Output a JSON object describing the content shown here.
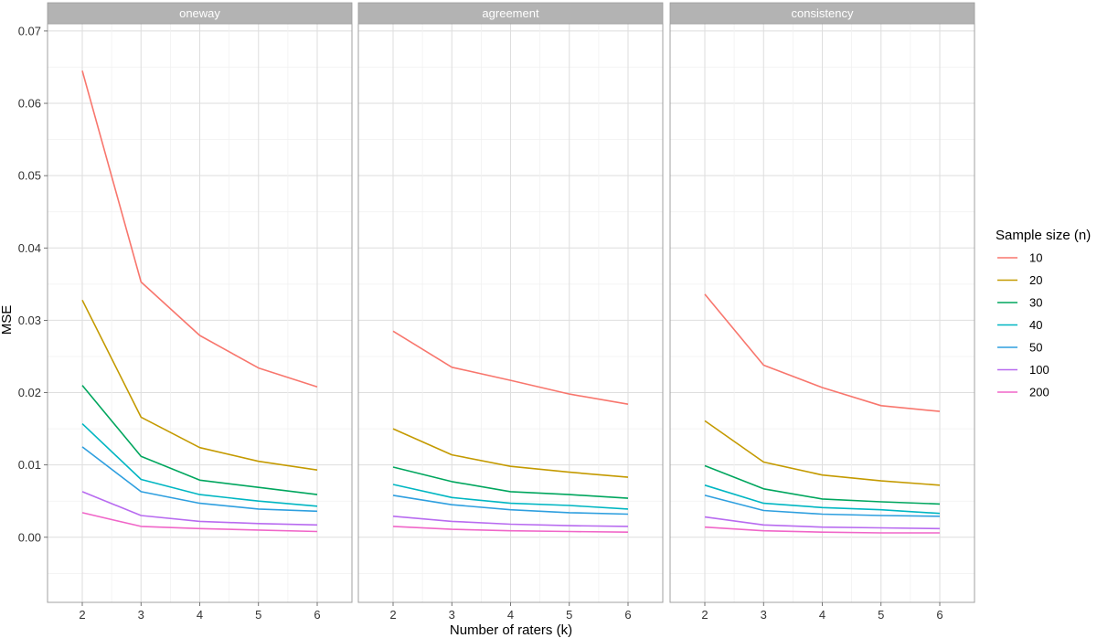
{
  "chart_data": {
    "type": "line",
    "xlabel": "Number of raters (k)",
    "ylabel": "MSE",
    "x": [
      2,
      3,
      4,
      5,
      6
    ],
    "x_ticks": [
      "2",
      "3",
      "4",
      "5",
      "6"
    ],
    "ylim": [
      -0.009,
      0.071
    ],
    "y_ticks": [
      "0.00",
      "0.01",
      "0.02",
      "0.03",
      "0.04",
      "0.05",
      "0.06",
      "0.07"
    ],
    "grid": true,
    "legend": {
      "title": "Sample size (n)",
      "placement": "right"
    },
    "series_styles": [
      {
        "name": "10",
        "color": "#F8766D"
      },
      {
        "name": "20",
        "color": "#C49A00"
      },
      {
        "name": "30",
        "color": "#00A65E"
      },
      {
        "name": "40",
        "color": "#00B6C2"
      },
      {
        "name": "50",
        "color": "#2E9FDF"
      },
      {
        "name": "100",
        "color": "#B86BF0"
      },
      {
        "name": "200",
        "color": "#F066C8"
      }
    ],
    "panels": [
      {
        "title": "oneway",
        "series": [
          {
            "name": "10",
            "values": [
              0.0645,
              0.0353,
              0.0279,
              0.0234,
              0.0208
            ]
          },
          {
            "name": "20",
            "values": [
              0.0328,
              0.0166,
              0.0124,
              0.0105,
              0.0093
            ]
          },
          {
            "name": "30",
            "values": [
              0.021,
              0.0112,
              0.0079,
              0.0069,
              0.0059
            ]
          },
          {
            "name": "40",
            "values": [
              0.0157,
              0.008,
              0.0059,
              0.005,
              0.0043
            ]
          },
          {
            "name": "50",
            "values": [
              0.0125,
              0.0063,
              0.0047,
              0.0039,
              0.0036
            ]
          },
          {
            "name": "100",
            "values": [
              0.0063,
              0.003,
              0.0022,
              0.0019,
              0.0017
            ]
          },
          {
            "name": "200",
            "values": [
              0.0034,
              0.0015,
              0.0012,
              0.001,
              0.0008
            ]
          }
        ]
      },
      {
        "title": "agreement",
        "series": [
          {
            "name": "10",
            "values": [
              0.0285,
              0.0235,
              0.0217,
              0.0198,
              0.0184
            ]
          },
          {
            "name": "20",
            "values": [
              0.015,
              0.0114,
              0.0098,
              0.009,
              0.0083
            ]
          },
          {
            "name": "30",
            "values": [
              0.0097,
              0.0077,
              0.0063,
              0.0059,
              0.0054
            ]
          },
          {
            "name": "40",
            "values": [
              0.0073,
              0.0055,
              0.0047,
              0.0044,
              0.0039
            ]
          },
          {
            "name": "50",
            "values": [
              0.0058,
              0.0045,
              0.0038,
              0.0034,
              0.0032
            ]
          },
          {
            "name": "100",
            "values": [
              0.0029,
              0.0022,
              0.0018,
              0.0016,
              0.0015
            ]
          },
          {
            "name": "200",
            "values": [
              0.0015,
              0.0011,
              0.0009,
              0.0008,
              0.0007
            ]
          }
        ]
      },
      {
        "title": "consistency",
        "series": [
          {
            "name": "10",
            "values": [
              0.0336,
              0.0238,
              0.0207,
              0.0182,
              0.0174
            ]
          },
          {
            "name": "20",
            "values": [
              0.0161,
              0.0104,
              0.0086,
              0.0078,
              0.0072
            ]
          },
          {
            "name": "30",
            "values": [
              0.0099,
              0.0067,
              0.0053,
              0.0049,
              0.0046
            ]
          },
          {
            "name": "40",
            "values": [
              0.0072,
              0.0047,
              0.0041,
              0.0038,
              0.0033
            ]
          },
          {
            "name": "50",
            "values": [
              0.0058,
              0.0037,
              0.0032,
              0.003,
              0.0029
            ]
          },
          {
            "name": "100",
            "values": [
              0.0028,
              0.0017,
              0.0014,
              0.0013,
              0.0012
            ]
          },
          {
            "name": "200",
            "values": [
              0.0014,
              0.0009,
              0.0007,
              0.0006,
              0.0006
            ]
          }
        ]
      }
    ]
  }
}
